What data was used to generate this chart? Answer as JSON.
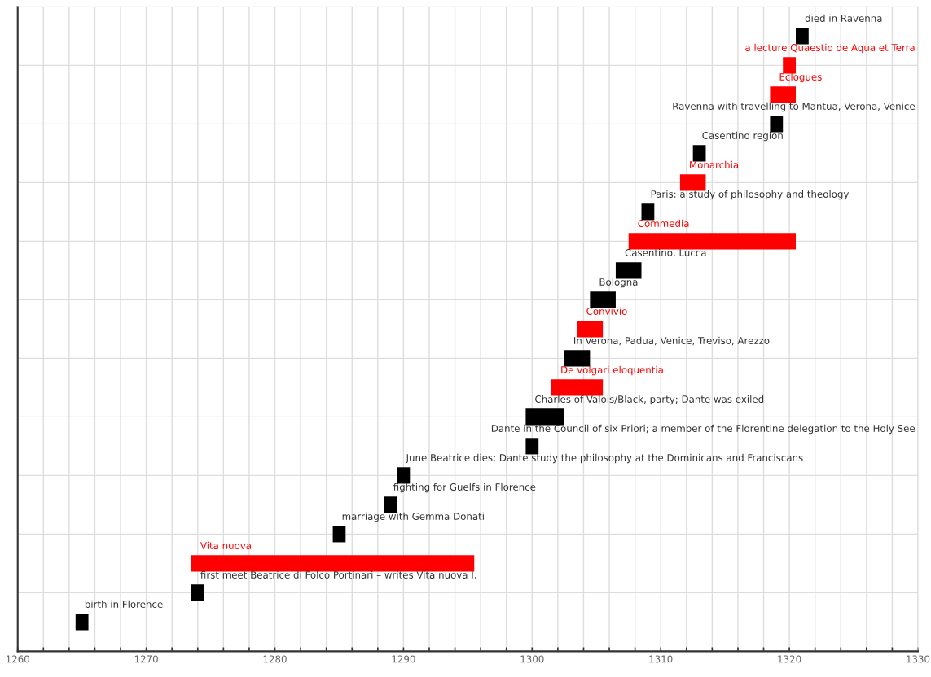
{
  "chart_data": {
    "type": "bar",
    "orientation": "horizontal",
    "categories": [
      "died in Ravenna",
      "a lecture Quaestio de Aqua et Terra",
      "Eclogues",
      "Ravenna with travelling to Mantua, Verona, Venice",
      "Casentino region",
      "Monarchia",
      "Paris: a study of philosophy and theology",
      "Commedia",
      "Casentino, Lucca",
      "Bologna",
      "Convivio",
      "In Verona, Padua, Venice, Treviso, Arezzo",
      "De volgari eloquentia",
      "Charles of Valois/Black, party; Dante was exiled",
      "Dante in the Council of six Priori; a member of the Florentine delegation to the Holy See",
      "June Beatrice dies; Dante study the philosophy at the Dominicans and Franciscans",
      "fighting for Guelfs in Florence",
      "marriage with Gemma Donati",
      "Vita nuova",
      "first meet Beatrice di Folco Portinari – writes Vita nuova I.",
      "birth in Florence"
    ],
    "base": [
      1320.5,
      1319.5,
      1318.5,
      1318.5,
      1312.5,
      1311.5,
      1308.5,
      1307.5,
      1306.5,
      1304.5,
      1303.5,
      1302.5,
      1301.5,
      1299.5,
      1299.5,
      1289.5,
      1288.5,
      1284.5,
      1273.5,
      1273.5,
      1264.5
    ],
    "values": [
      1,
      1,
      2,
      1,
      1,
      2,
      1,
      13,
      2,
      2,
      2,
      2,
      4,
      3,
      1,
      1,
      1,
      1,
      22,
      1,
      1
    ],
    "colors": [
      "#000000",
      "#ff0000",
      "#ff0000",
      "#000000",
      "#000000",
      "#ff0000",
      "#000000",
      "#ff0000",
      "#000000",
      "#000000",
      "#ff0000",
      "#000000",
      "#ff0000",
      "#000000",
      "#000000",
      "#000000",
      "#000000",
      "#000000",
      "#ff0000",
      "#000000",
      "#000000"
    ],
    "xlim": [
      1260,
      1330
    ],
    "xticks": [
      1260,
      {
        "value": 1262,
        "label": null
      },
      {
        "value": 1264,
        "label": null
      },
      {
        "value": 1266,
        "label": null
      },
      {
        "value": 1268,
        "label": null
      },
      1270,
      {
        "value": 1272,
        "label": null
      },
      {
        "value": 1274,
        "label": null
      },
      {
        "value": 1276,
        "label": null
      },
      {
        "value": 1278,
        "label": null
      },
      1280,
      {
        "value": 1282,
        "label": null
      },
      {
        "value": 1284,
        "label": null
      },
      {
        "value": 1286,
        "label": null
      },
      {
        "value": 1288,
        "label": null
      },
      1290,
      {
        "value": 1292,
        "label": null
      },
      {
        "value": 1294,
        "label": null
      },
      {
        "value": 1296,
        "label": null
      },
      {
        "value": 1298,
        "label": null
      },
      1300,
      {
        "value": 1302,
        "label": null
      },
      {
        "value": 1304,
        "label": null
      },
      {
        "value": 1306,
        "label": null
      },
      {
        "value": 1308,
        "label": null
      },
      1310,
      {
        "value": 1312,
        "label": null
      },
      {
        "value": 1314,
        "label": null
      },
      {
        "value": 1316,
        "label": null
      },
      {
        "value": 1318,
        "label": null
      },
      1320,
      {
        "value": 1322,
        "label": null
      },
      {
        "value": 1324,
        "label": null
      },
      {
        "value": 1326,
        "label": null
      },
      {
        "value": 1328,
        "label": null
      },
      1330
    ],
    "grid": true,
    "tick_labels": "x"
  }
}
